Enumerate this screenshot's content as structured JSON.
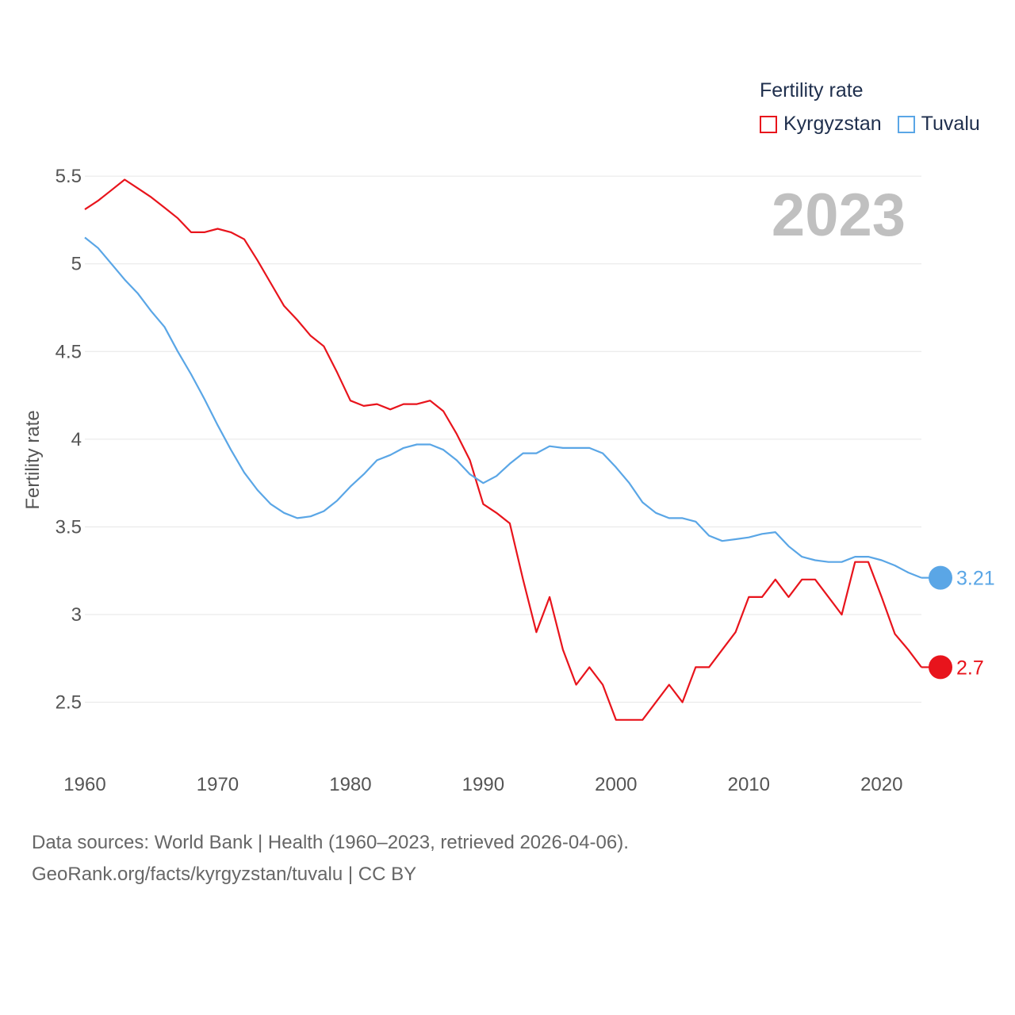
{
  "legend": {
    "title": "Fertility rate",
    "items": [
      {
        "label": "Kyrgyzstan",
        "color": "#e8141c"
      },
      {
        "label": "Tuvalu",
        "color": "#5aa6e6"
      }
    ]
  },
  "current_year_label": "2023",
  "footer": {
    "line1": "Data sources: World Bank | Health (1960–2023, retrieved 2026-04-06).",
    "line2": "GeoRank.org/facts/kyrgyzstan/tuvalu | CC BY"
  },
  "chart_data": {
    "type": "line",
    "title": "Fertility rate",
    "xlabel": "",
    "ylabel": "Fertility rate",
    "xlim": [
      1960,
      2023
    ],
    "ylim": [
      2.2,
      5.6
    ],
    "x_ticks": [
      1960,
      1970,
      1980,
      1990,
      2000,
      2010,
      2020
    ],
    "y_ticks": [
      2.5,
      3,
      3.5,
      4,
      4.5,
      5,
      5.5
    ],
    "y_tick_labels": [
      "2.5",
      "3",
      "3.5",
      "4",
      "4.5",
      "5",
      "5.5"
    ],
    "grid": true,
    "x": [
      1960,
      1961,
      1962,
      1963,
      1964,
      1965,
      1966,
      1967,
      1968,
      1969,
      1970,
      1971,
      1972,
      1973,
      1974,
      1975,
      1976,
      1977,
      1978,
      1979,
      1980,
      1981,
      1982,
      1983,
      1984,
      1985,
      1986,
      1987,
      1988,
      1989,
      1990,
      1991,
      1992,
      1993,
      1994,
      1995,
      1996,
      1997,
      1998,
      1999,
      2000,
      2001,
      2002,
      2003,
      2004,
      2005,
      2006,
      2007,
      2008,
      2009,
      2010,
      2011,
      2012,
      2013,
      2014,
      2015,
      2016,
      2017,
      2018,
      2019,
      2020,
      2021,
      2022,
      2023
    ],
    "series": [
      {
        "name": "Kyrgyzstan",
        "color": "#e8141c",
        "end_label": "2.7",
        "values": [
          5.31,
          5.36,
          5.42,
          5.48,
          5.43,
          5.38,
          5.32,
          5.26,
          5.18,
          5.18,
          5.2,
          5.18,
          5.14,
          5.02,
          4.89,
          4.76,
          4.68,
          4.59,
          4.53,
          4.38,
          4.22,
          4.19,
          4.2,
          4.17,
          4.2,
          4.2,
          4.22,
          4.16,
          4.03,
          3.88,
          3.63,
          3.58,
          3.52,
          3.2,
          2.9,
          3.1,
          2.8,
          2.6,
          2.7,
          2.6,
          2.4,
          2.4,
          2.4,
          2.5,
          2.6,
          2.5,
          2.7,
          2.7,
          2.8,
          2.9,
          3.1,
          3.1,
          3.2,
          3.1,
          3.2,
          3.2,
          3.1,
          3.0,
          3.3,
          3.3,
          3.1,
          2.89,
          2.8,
          2.7
        ]
      },
      {
        "name": "Tuvalu",
        "color": "#5aa6e6",
        "end_label": "3.21",
        "values": [
          5.15,
          5.09,
          5.0,
          4.91,
          4.83,
          4.73,
          4.64,
          4.5,
          4.37,
          4.23,
          4.08,
          3.94,
          3.81,
          3.71,
          3.63,
          3.58,
          3.55,
          3.56,
          3.59,
          3.65,
          3.73,
          3.8,
          3.88,
          3.91,
          3.95,
          3.97,
          3.97,
          3.94,
          3.88,
          3.8,
          3.75,
          3.79,
          3.86,
          3.92,
          3.92,
          3.96,
          3.95,
          3.95,
          3.95,
          3.92,
          3.84,
          3.75,
          3.64,
          3.58,
          3.55,
          3.55,
          3.53,
          3.45,
          3.42,
          3.43,
          3.44,
          3.46,
          3.47,
          3.39,
          3.33,
          3.31,
          3.3,
          3.3,
          3.33,
          3.33,
          3.31,
          3.28,
          3.24,
          3.21
        ]
      }
    ]
  }
}
